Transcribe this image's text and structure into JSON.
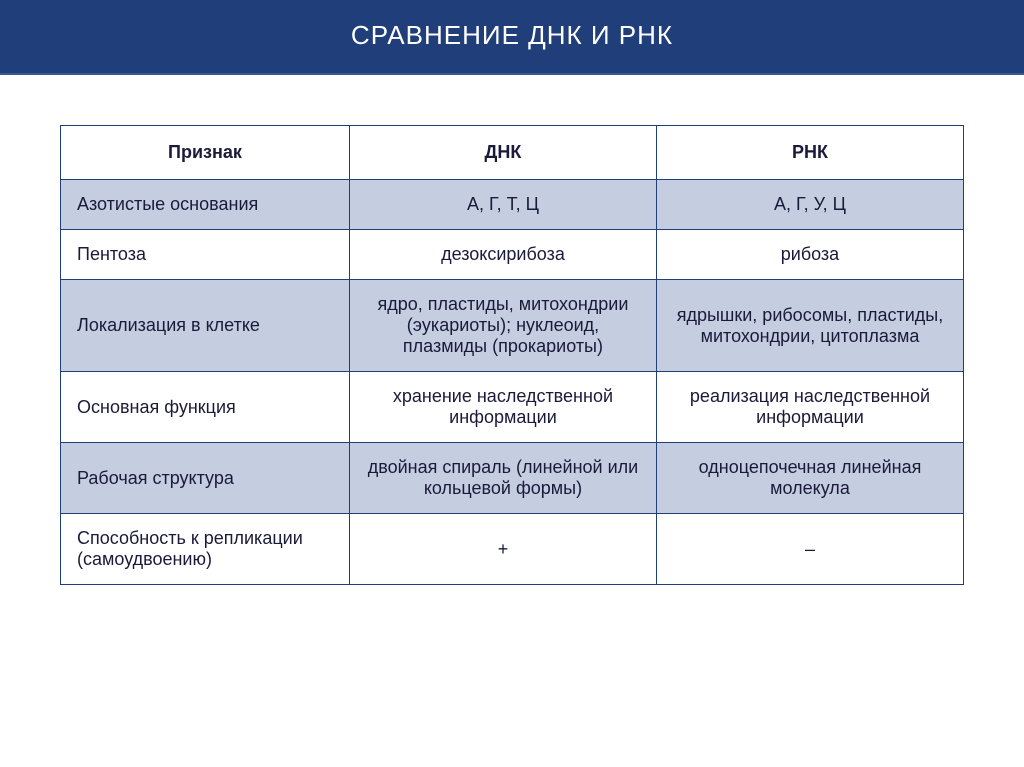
{
  "title": "СРАВНЕНИЕ ДНК И РНК",
  "table": {
    "columns": [
      "Признак",
      "ДНК",
      "РНК"
    ],
    "rows": [
      {
        "shaded": true,
        "sign": "Азотистые основания",
        "dna": "А, Г, Т, Ц",
        "rna": "А, Г, У, Ц"
      },
      {
        "shaded": false,
        "sign": "Пентоза",
        "dna": "дезоксирибоза",
        "rna": "рибоза"
      },
      {
        "shaded": true,
        "sign": "Локализация в клетке",
        "dna": "ядро, пластиды, митохондрии (эукариоты); нуклеоид, плазмиды (прокариоты)",
        "rna": "ядрышки, рибосомы, пластиды, митохондрии, цитоплазма"
      },
      {
        "shaded": false,
        "sign": "Основная функция",
        "dna": "хранение наследственной информации",
        "rna": "реализация наследственной информации"
      },
      {
        "shaded": true,
        "sign": "Рабочая структура",
        "dna": "двойная спираль (линейной или кольцевой формы)",
        "rna": "одноцепочечная линейная молекула"
      },
      {
        "shaded": false,
        "sign": "Способность к репликации (самоудвоению)",
        "dna": "+",
        "rna": "–"
      }
    ],
    "header_bg": "#ffffff",
    "shaded_bg": "#c5cde1",
    "border_color": "#1f3e7a",
    "header_color": "#1f3e7a",
    "font_size": 18
  }
}
